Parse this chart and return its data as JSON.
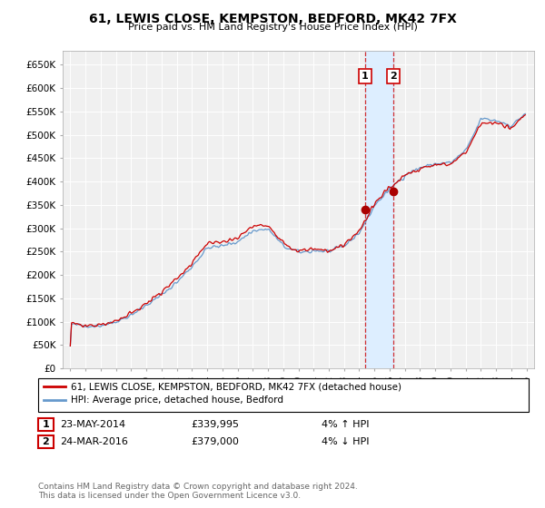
{
  "title": "61, LEWIS CLOSE, KEMPSTON, BEDFORD, MK42 7FX",
  "subtitle": "Price paid vs. HM Land Registry's House Price Index (HPI)",
  "legend_line1": "61, LEWIS CLOSE, KEMPSTON, BEDFORD, MK42 7FX (detached house)",
  "legend_line2": "HPI: Average price, detached house, Bedford",
  "footnote": "Contains HM Land Registry data © Crown copyright and database right 2024.\nThis data is licensed under the Open Government Licence v3.0.",
  "transaction1": {
    "label": "1",
    "date": "23-MAY-2014",
    "price": "£339,995",
    "hpi": "4% ↑ HPI",
    "x": 2014.39
  },
  "transaction2": {
    "label": "2",
    "date": "24-MAR-2016",
    "price": "£379,000",
    "hpi": "4% ↓ HPI",
    "x": 2016.23
  },
  "red_color": "#cc0000",
  "blue_color": "#6699cc",
  "shaded_color": "#ddeeff",
  "plot_bg_color": "#f0f0f0",
  "background_color": "#ffffff",
  "grid_color": "#ffffff",
  "ylim": [
    0,
    680000
  ],
  "xlim": [
    1994.5,
    2025.5
  ],
  "yticks": [
    0,
    50000,
    100000,
    150000,
    200000,
    250000,
    300000,
    350000,
    400000,
    450000,
    500000,
    550000,
    600000,
    650000
  ],
  "ytick_labels": [
    "£0",
    "£50K",
    "£100K",
    "£150K",
    "£200K",
    "£250K",
    "£300K",
    "£350K",
    "£400K",
    "£450K",
    "£500K",
    "£550K",
    "£600K",
    "£650K"
  ],
  "xticks": [
    1995,
    1996,
    1997,
    1998,
    1999,
    2000,
    2001,
    2002,
    2003,
    2004,
    2005,
    2006,
    2007,
    2008,
    2009,
    2010,
    2011,
    2012,
    2013,
    2014,
    2015,
    2016,
    2017,
    2018,
    2019,
    2020,
    2021,
    2022,
    2023,
    2024,
    2025
  ],
  "t1_y": 340000,
  "t2_y": 379000,
  "marker_color": "#aa0000"
}
